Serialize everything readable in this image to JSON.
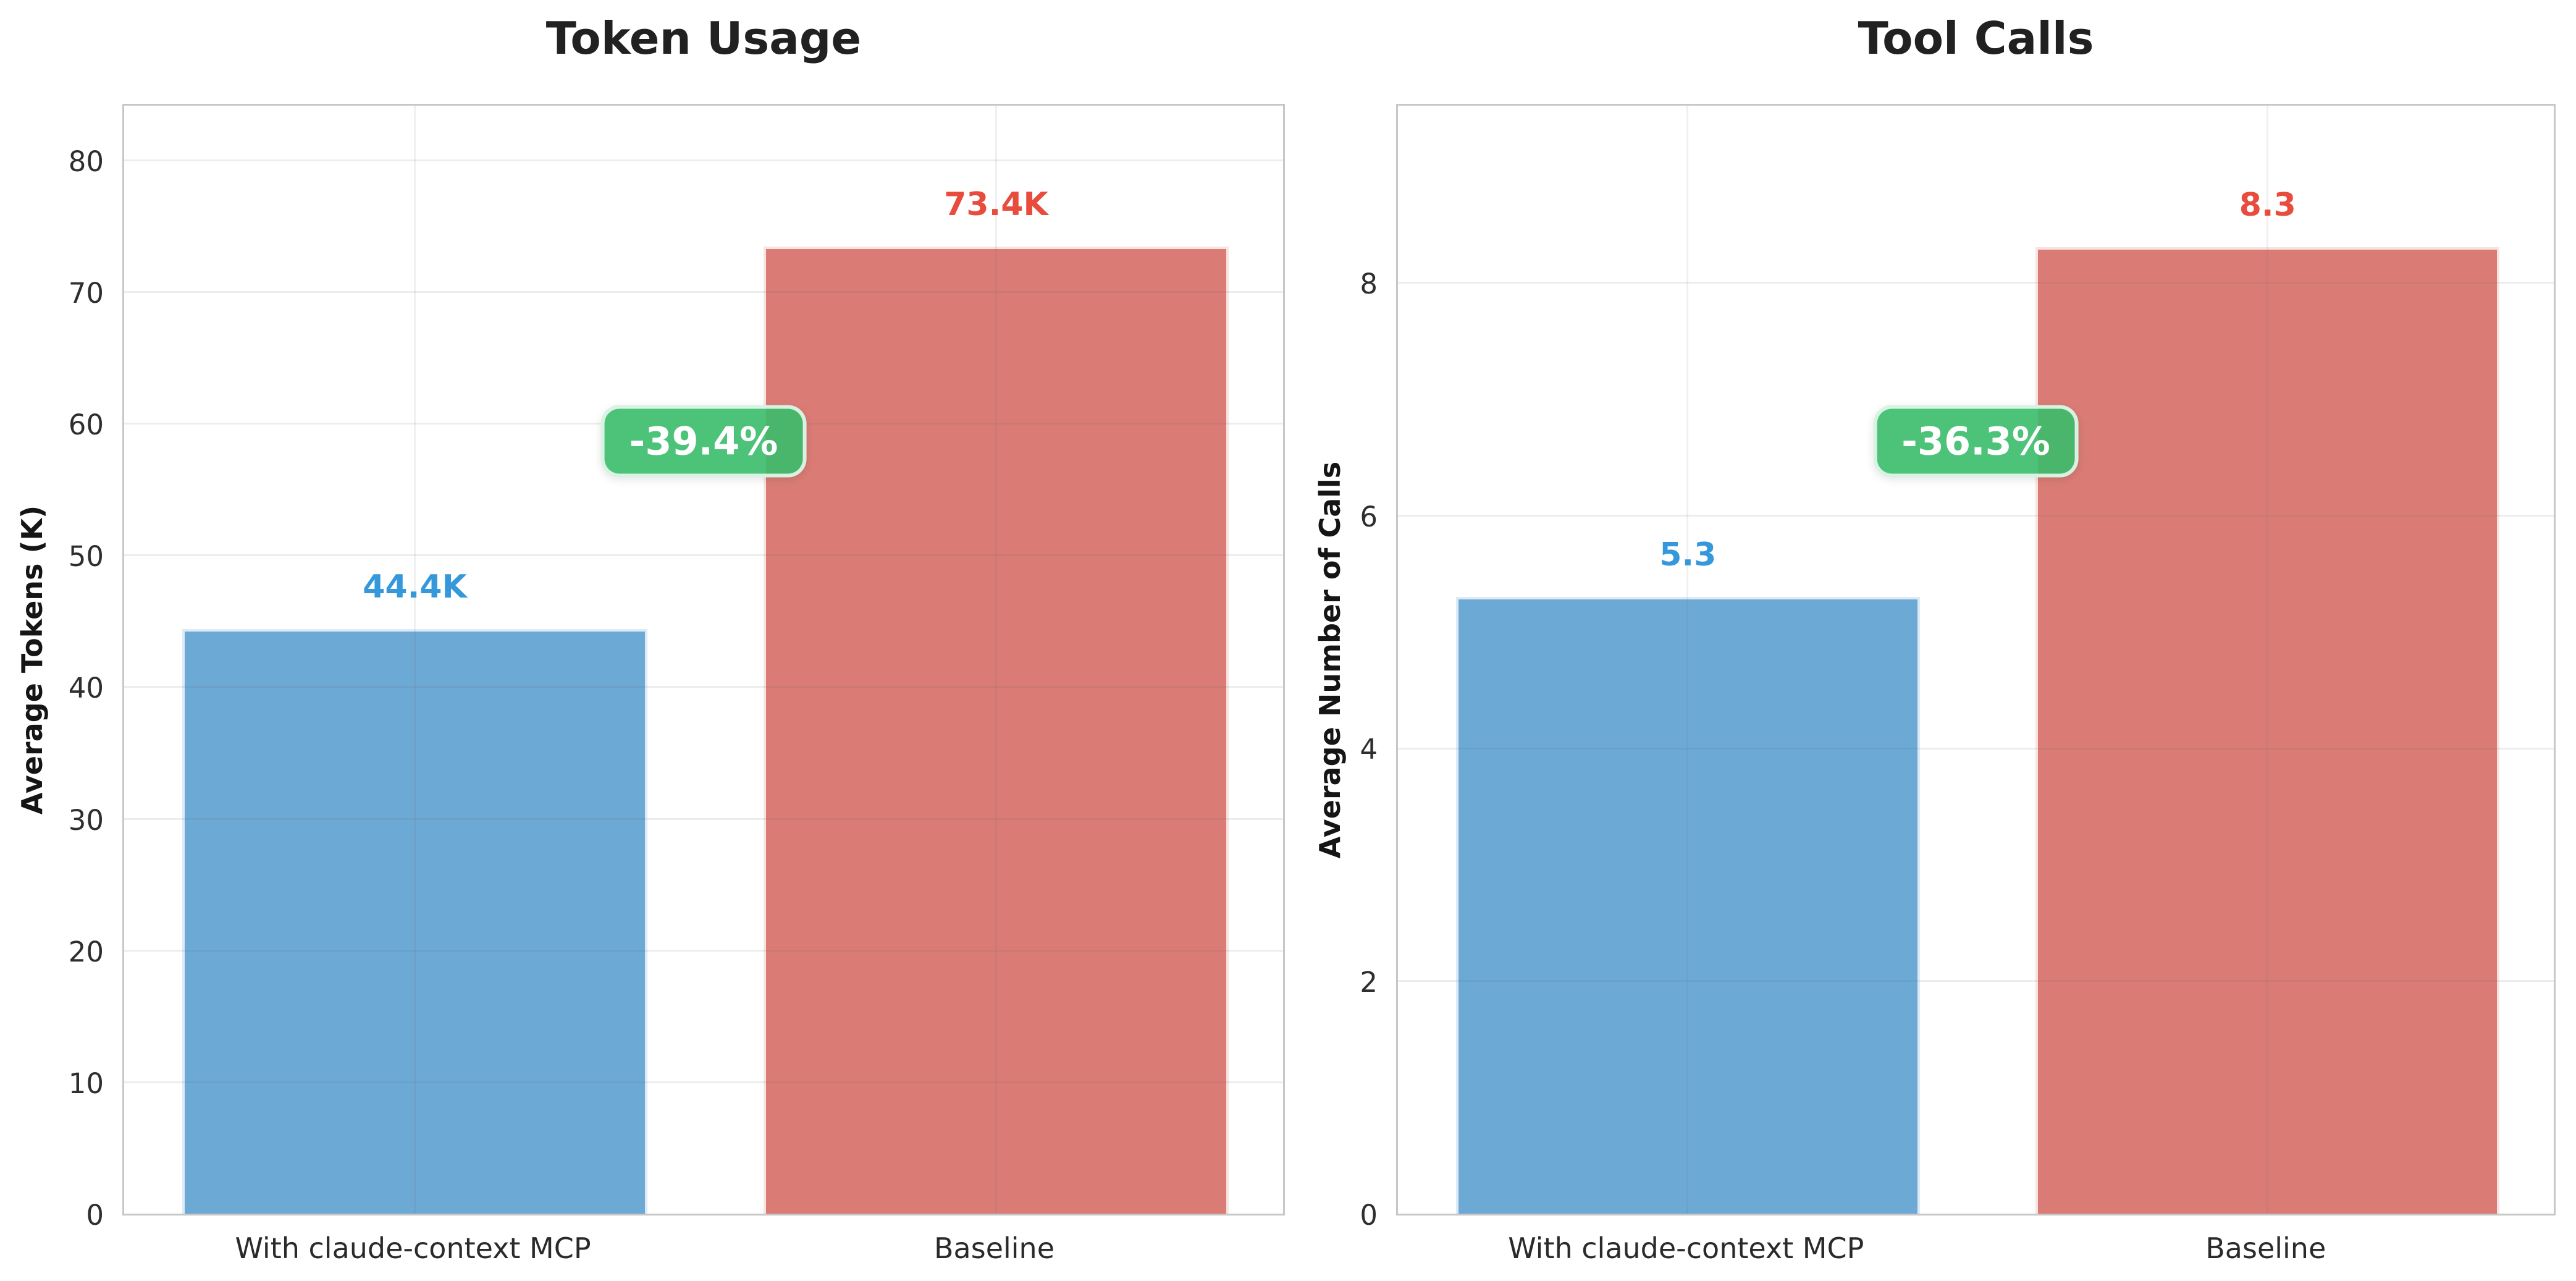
{
  "figure": {
    "background": "#ffffff",
    "spine_color": "#c7c7c7",
    "grid_color": "#ededed"
  },
  "chart_data": [
    {
      "type": "bar",
      "title": "Token Usage",
      "ylabel": "Average Tokens (K)",
      "xlabel": "",
      "categories": [
        "With claude-context MCP",
        "Baseline"
      ],
      "values": [
        44.4,
        73.4
      ],
      "value_labels": [
        "44.4K",
        "73.4K"
      ],
      "annotation": "-39.4%",
      "yticks": [
        0,
        10,
        20,
        30,
        40,
        50,
        60,
        70,
        80
      ],
      "ylim": [
        0,
        84.4
      ],
      "grid": "both",
      "legend_position": "none",
      "bar_colors": [
        "#6CA9D4",
        "#DA7C75"
      ],
      "bar_edge_colors": [
        "#DEEBF7",
        "#F7E3E0"
      ],
      "label_colors": [
        "#3498DB",
        "#E74C3C"
      ],
      "badge_bg": "rgba(58,189,108,0.90)",
      "badge_border": "rgba(224,246,233,0.95)"
    },
    {
      "type": "bar",
      "title": "Tool Calls",
      "ylabel": "Average Number of Calls",
      "xlabel": "",
      "categories": [
        "With claude-context MCP",
        "Baseline"
      ],
      "values": [
        5.3,
        8.3
      ],
      "value_labels": [
        "5.3",
        "8.3"
      ],
      "annotation": "-36.3%",
      "yticks": [
        0,
        2,
        4,
        6,
        8
      ],
      "ylim": [
        0,
        9.55
      ],
      "grid": "both",
      "legend_position": "none",
      "bar_colors": [
        "#6CA9D4",
        "#DA7C75"
      ],
      "bar_edge_colors": [
        "#DEEBF7",
        "#F7E3E0"
      ],
      "label_colors": [
        "#3498DB",
        "#E74C3C"
      ],
      "badge_bg": "rgba(58,189,108,0.90)",
      "badge_border": "rgba(224,246,233,0.95)"
    }
  ]
}
